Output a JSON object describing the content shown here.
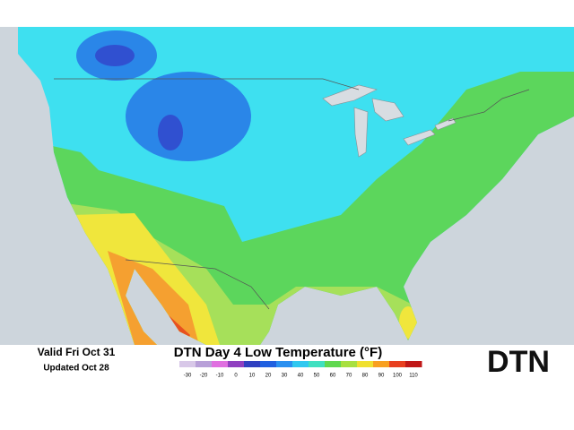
{
  "header": {
    "valid": "Valid Fri Oct 31",
    "updated": "Updated Oct 28"
  },
  "title": "DTN Day 4 Low Temperature (°F)",
  "legend": {
    "ticks": [
      -30,
      -20,
      -10,
      0,
      10,
      20,
      30,
      40,
      50,
      60,
      70,
      80,
      90,
      100,
      110
    ],
    "colors": [
      "#d8c8e8",
      "#b8a0d8",
      "#e070e0",
      "#9040c0",
      "#3040c0",
      "#2060e0",
      "#2a90f0",
      "#30c8f0",
      "#40e0c0",
      "#60d850",
      "#a8e040",
      "#f0e030",
      "#f8a020",
      "#e84020",
      "#c01818"
    ]
  },
  "logo": "DTN"
}
